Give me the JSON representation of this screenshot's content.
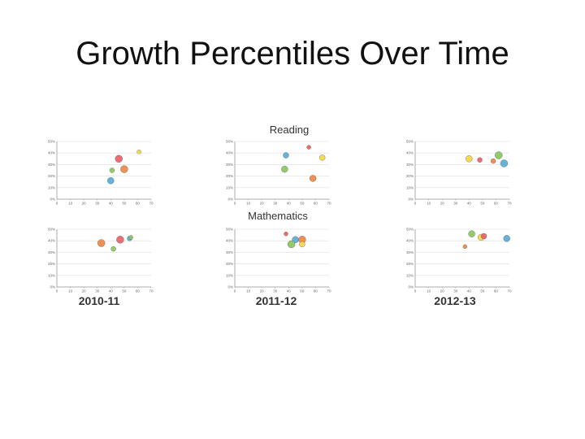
{
  "slide": {
    "title": "Growth Percentiles Over Time",
    "row_labels": [
      "Reading",
      "Mathematics"
    ],
    "col_labels": [
      "2010-11",
      "2011-12",
      "2012-13"
    ]
  },
  "colors": {
    "blue": "#5aaed8",
    "red": "#e8656b",
    "orange": "#ee8a4a",
    "green": "#8cc860",
    "yellow": "#f5d84a",
    "grid": "#dddddd",
    "axis": "#999999"
  },
  "chart_data": [
    {
      "type": "scatter",
      "panel": "reading-2010-11",
      "xlim": [
        0,
        70
      ],
      "ylim": [
        0,
        50
      ],
      "xticks": [
        0,
        10,
        20,
        30,
        40,
        50,
        60,
        70
      ],
      "yticks": [
        0,
        10,
        20,
        30,
        40,
        50
      ],
      "ytick_suffix": "%",
      "points": [
        {
          "x": 46,
          "y": 35,
          "color": "red",
          "size": 4.5
        },
        {
          "x": 61,
          "y": 41,
          "color": "yellow",
          "size": 2.5
        },
        {
          "x": 41,
          "y": 25,
          "color": "green",
          "size": 3
        },
        {
          "x": 50,
          "y": 26,
          "color": "orange",
          "size": 4.5
        },
        {
          "x": 40,
          "y": 16,
          "color": "blue",
          "size": 4
        }
      ]
    },
    {
      "type": "scatter",
      "panel": "reading-2011-12",
      "xlim": [
        0,
        70
      ],
      "ylim": [
        0,
        50
      ],
      "xticks": [
        0,
        10,
        20,
        30,
        40,
        50,
        60,
        70
      ],
      "yticks": [
        0,
        10,
        20,
        30,
        40,
        50
      ],
      "ytick_suffix": "%",
      "points": [
        {
          "x": 38,
          "y": 38,
          "color": "blue",
          "size": 3.5
        },
        {
          "x": 55,
          "y": 45,
          "color": "red",
          "size": 2.5
        },
        {
          "x": 65,
          "y": 36,
          "color": "yellow",
          "size": 3.5
        },
        {
          "x": 37,
          "y": 26,
          "color": "green",
          "size": 4
        },
        {
          "x": 58,
          "y": 18,
          "color": "orange",
          "size": 4
        }
      ]
    },
    {
      "type": "scatter",
      "panel": "reading-2012-13",
      "xlim": [
        0,
        70
      ],
      "ylim": [
        0,
        50
      ],
      "xticks": [
        0,
        10,
        20,
        30,
        40,
        50,
        60,
        70
      ],
      "yticks": [
        0,
        10,
        20,
        30,
        40,
        50
      ],
      "ytick_suffix": "%",
      "points": [
        {
          "x": 40,
          "y": 35,
          "color": "yellow",
          "size": 4
        },
        {
          "x": 48,
          "y": 34,
          "color": "red",
          "size": 3
        },
        {
          "x": 58,
          "y": 33,
          "color": "orange",
          "size": 3
        },
        {
          "x": 62,
          "y": 38,
          "color": "green",
          "size": 4.5
        },
        {
          "x": 66,
          "y": 31,
          "color": "blue",
          "size": 4.5
        }
      ]
    },
    {
      "type": "scatter",
      "panel": "mathematics-2010-11",
      "xlim": [
        0,
        70
      ],
      "ylim": [
        0,
        50
      ],
      "xticks": [
        0,
        10,
        20,
        30,
        40,
        50,
        60,
        70
      ],
      "yticks": [
        0,
        10,
        20,
        30,
        40,
        50
      ],
      "ytick_suffix": "%",
      "points": [
        {
          "x": 33,
          "y": 38,
          "color": "orange",
          "size": 4.5
        },
        {
          "x": 47,
          "y": 41,
          "color": "red",
          "size": 4.5
        },
        {
          "x": 54,
          "y": 42,
          "color": "blue",
          "size": 3
        },
        {
          "x": 55,
          "y": 43,
          "color": "green",
          "size": 2.5
        },
        {
          "x": 42,
          "y": 33,
          "color": "green",
          "size": 3
        }
      ]
    },
    {
      "type": "scatter",
      "panel": "mathematics-2011-12",
      "xlim": [
        0,
        70
      ],
      "ylim": [
        0,
        50
      ],
      "xticks": [
        0,
        10,
        20,
        30,
        40,
        50,
        60,
        70
      ],
      "yticks": [
        0,
        10,
        20,
        30,
        40,
        50
      ],
      "ytick_suffix": "%",
      "points": [
        {
          "x": 38,
          "y": 46,
          "color": "red",
          "size": 2.5
        },
        {
          "x": 45,
          "y": 41,
          "color": "blue",
          "size": 4
        },
        {
          "x": 50,
          "y": 41,
          "color": "orange",
          "size": 4.5
        },
        {
          "x": 42,
          "y": 37,
          "color": "green",
          "size": 4.5
        },
        {
          "x": 50,
          "y": 37,
          "color": "yellow",
          "size": 3.5
        }
      ]
    },
    {
      "type": "scatter",
      "panel": "mathematics-2012-13",
      "xlim": [
        0,
        70
      ],
      "ylim": [
        0,
        50
      ],
      "xticks": [
        0,
        10,
        20,
        30,
        40,
        50,
        60,
        70
      ],
      "yticks": [
        0,
        10,
        20,
        30,
        40,
        50
      ],
      "ytick_suffix": "%",
      "points": [
        {
          "x": 42,
          "y": 46,
          "color": "green",
          "size": 4
        },
        {
          "x": 49,
          "y": 43,
          "color": "yellow",
          "size": 4
        },
        {
          "x": 51,
          "y": 44,
          "color": "red",
          "size": 3.5
        },
        {
          "x": 68,
          "y": 42,
          "color": "blue",
          "size": 4
        },
        {
          "x": 37,
          "y": 35,
          "color": "orange",
          "size": 2.5
        }
      ]
    }
  ]
}
